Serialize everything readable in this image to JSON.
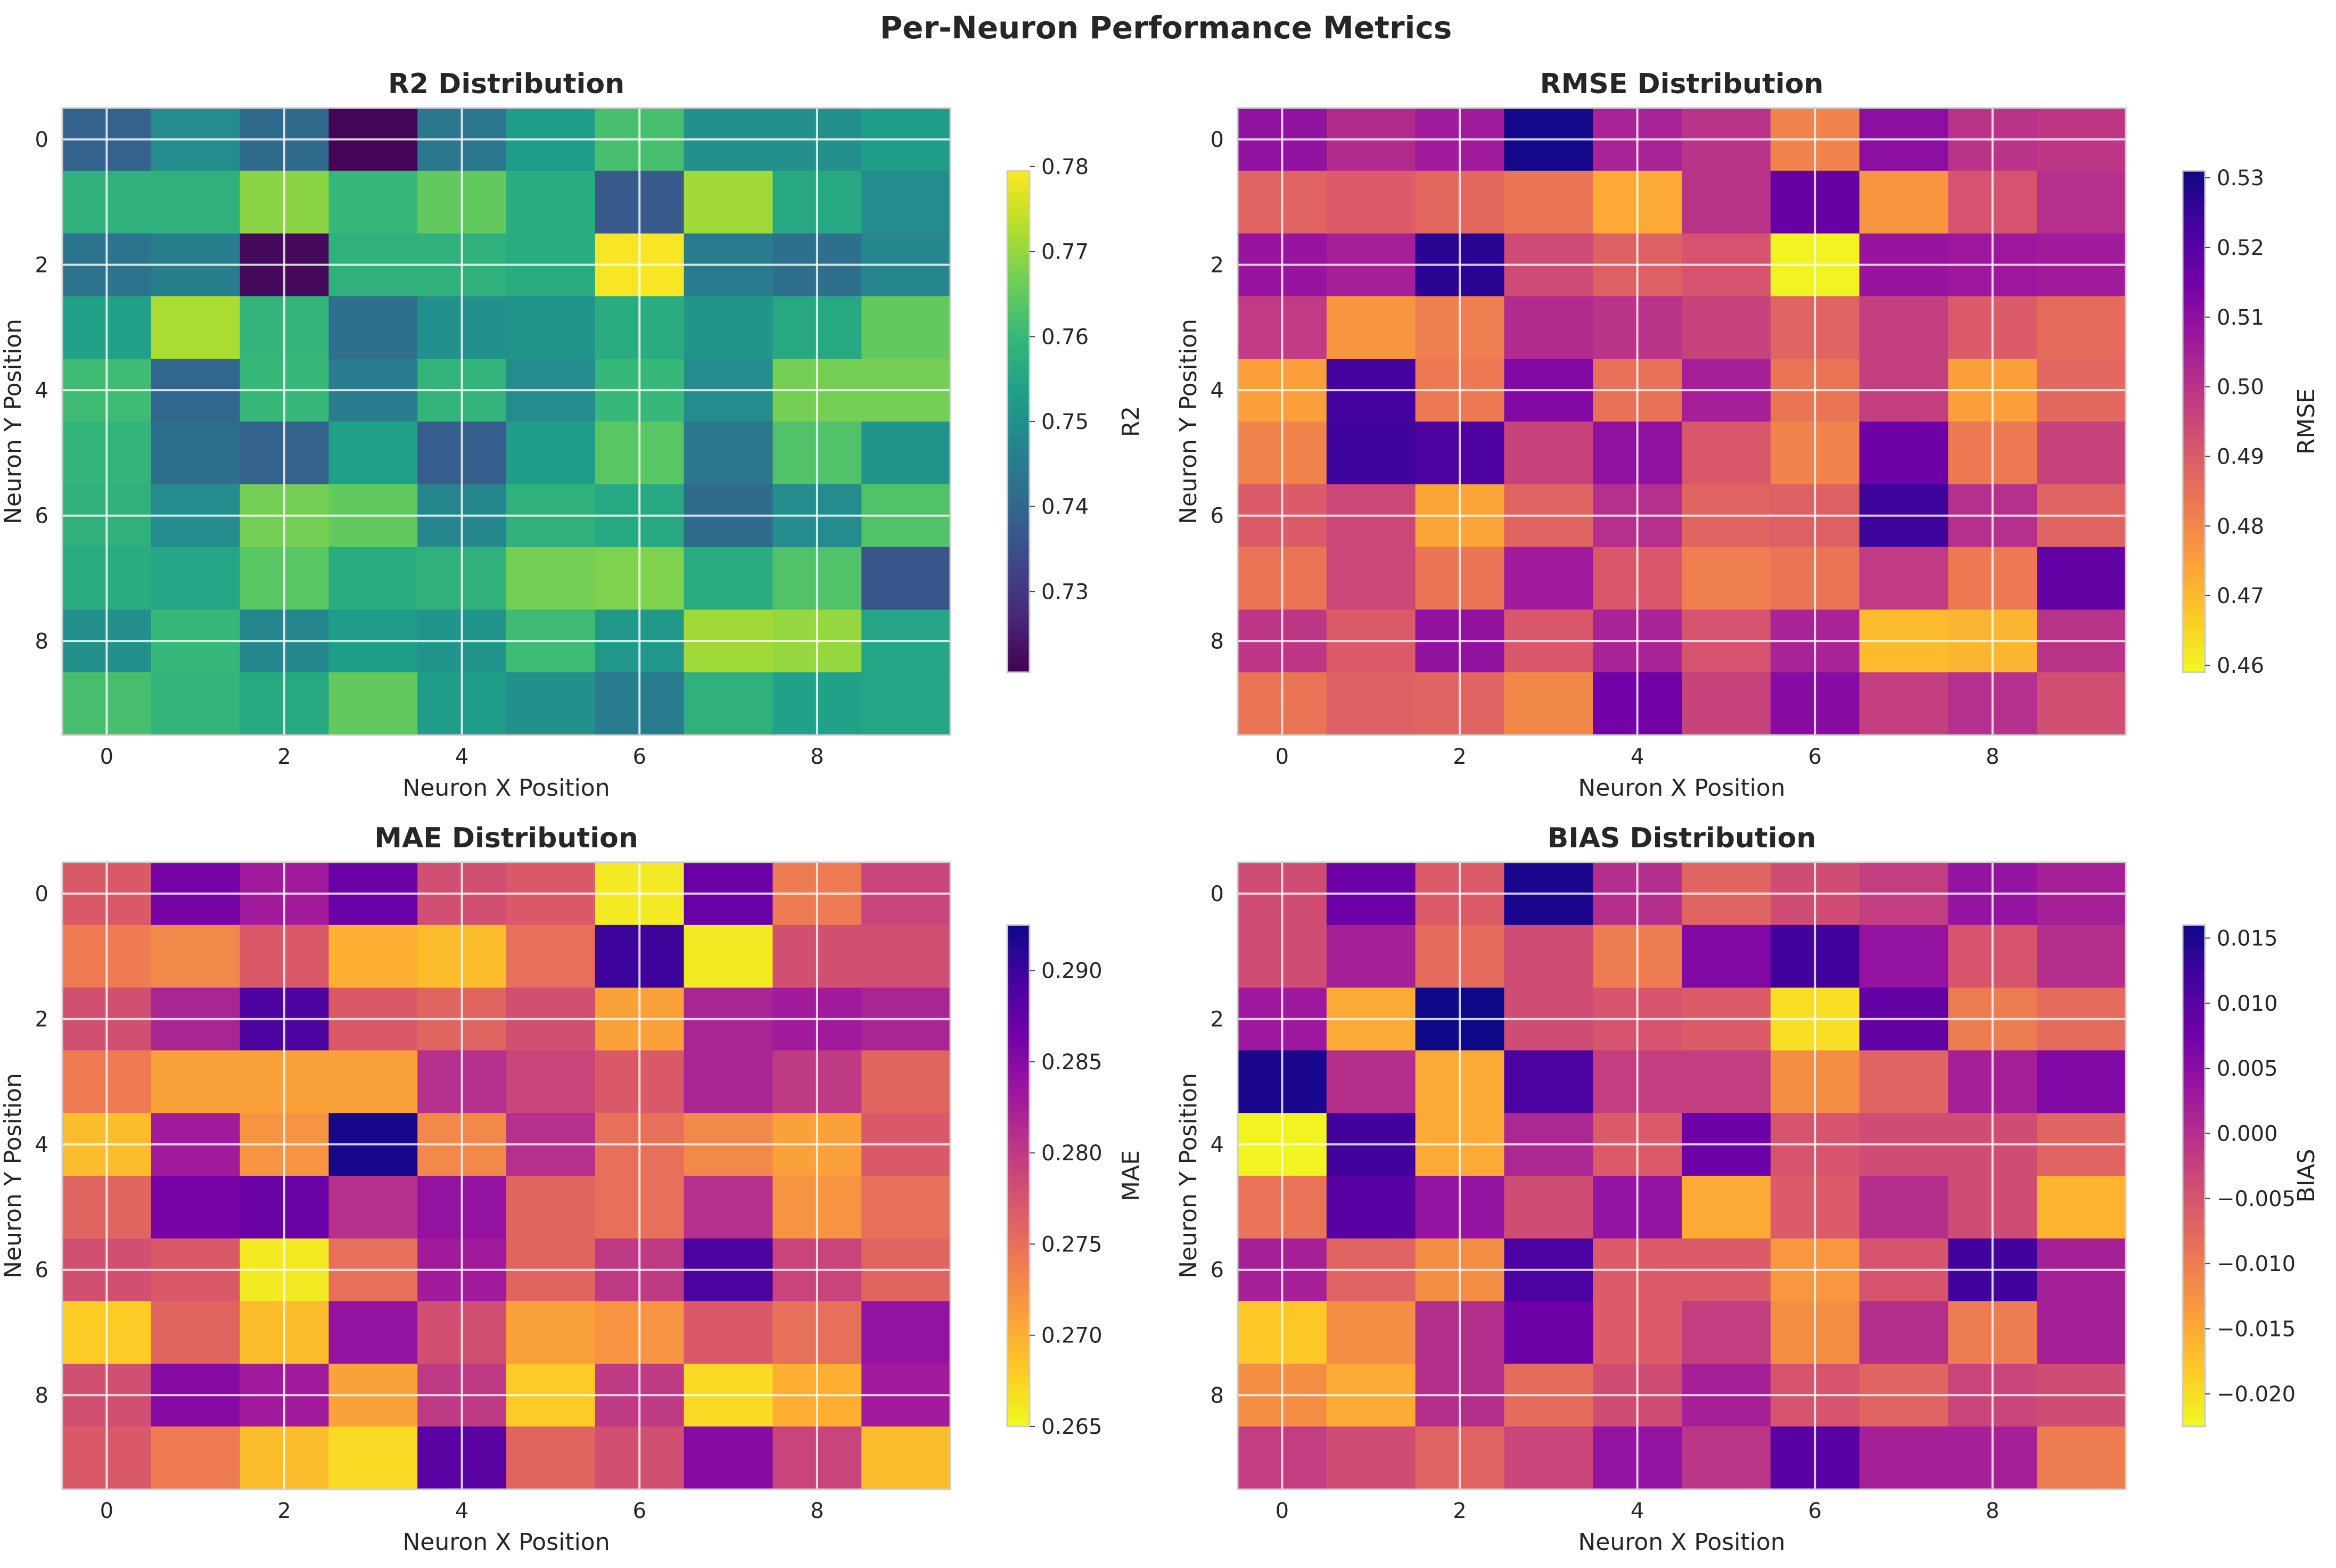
{
  "figure": {
    "title": "Per-Neuron Performance Metrics"
  },
  "chart_data": [
    {
      "type": "heatmap",
      "title": "R2 Distribution",
      "xlabel": "Neuron X Position",
      "ylabel": "Neuron Y Position",
      "colorbar_label": "R2",
      "colormap": "viridis",
      "vmin": 0.7205,
      "vmax": 0.7795,
      "colorbar_ticks": [
        0.73,
        0.74,
        0.75,
        0.76,
        0.77,
        0.78
      ],
      "colorbar_tick_labels": [
        "0.73",
        "0.74",
        "0.75",
        "0.76",
        "0.77",
        "0.78"
      ],
      "xticks": [
        0,
        2,
        4,
        6,
        8
      ],
      "yticks": [
        0,
        2,
        4,
        6,
        8
      ],
      "grid": true,
      "values": [
        [
          0.739,
          0.749,
          0.741,
          0.721,
          0.744,
          0.753,
          0.762,
          0.75,
          0.75,
          0.753
        ],
        [
          0.758,
          0.758,
          0.769,
          0.76,
          0.765,
          0.757,
          0.737,
          0.771,
          0.756,
          0.749
        ],
        [
          0.743,
          0.746,
          0.722,
          0.758,
          0.758,
          0.757,
          0.779,
          0.745,
          0.742,
          0.748
        ],
        [
          0.754,
          0.772,
          0.759,
          0.742,
          0.75,
          0.751,
          0.757,
          0.751,
          0.756,
          0.765
        ],
        [
          0.761,
          0.74,
          0.76,
          0.745,
          0.759,
          0.749,
          0.76,
          0.749,
          0.767,
          0.767
        ],
        [
          0.759,
          0.742,
          0.739,
          0.754,
          0.738,
          0.753,
          0.764,
          0.744,
          0.763,
          0.751
        ],
        [
          0.758,
          0.749,
          0.767,
          0.765,
          0.748,
          0.758,
          0.756,
          0.741,
          0.749,
          0.763
        ],
        [
          0.757,
          0.755,
          0.764,
          0.757,
          0.758,
          0.767,
          0.768,
          0.757,
          0.763,
          0.736
        ],
        [
          0.75,
          0.76,
          0.748,
          0.753,
          0.751,
          0.761,
          0.752,
          0.771,
          0.77,
          0.755
        ],
        [
          0.762,
          0.759,
          0.756,
          0.765,
          0.753,
          0.75,
          0.745,
          0.758,
          0.754,
          0.755
        ]
      ]
    },
    {
      "type": "heatmap",
      "title": "RMSE Distribution",
      "xlabel": "Neuron X Position",
      "ylabel": "Neuron Y Position",
      "colorbar_label": "RMSE",
      "colormap": "plasma_r",
      "vmin": 0.459,
      "vmax": 0.531,
      "colorbar_ticks": [
        0.46,
        0.47,
        0.48,
        0.49,
        0.5,
        0.51,
        0.52,
        0.53
      ],
      "colorbar_tick_labels": [
        "0.46",
        "0.47",
        "0.48",
        "0.49",
        "0.50",
        "0.51",
        "0.52",
        "0.53"
      ],
      "xticks": [
        0,
        2,
        4,
        6,
        8
      ],
      "yticks": [
        0,
        2,
        4,
        6,
        8
      ],
      "grid": true,
      "values": [
        [
          0.509,
          0.502,
          0.506,
          0.53,
          0.504,
          0.5,
          0.481,
          0.51,
          0.5,
          0.499
        ],
        [
          0.488,
          0.49,
          0.487,
          0.484,
          0.473,
          0.5,
          0.517,
          0.477,
          0.492,
          0.501
        ],
        [
          0.508,
          0.505,
          0.527,
          0.494,
          0.489,
          0.492,
          0.46,
          0.508,
          0.507,
          0.506
        ],
        [
          0.498,
          0.477,
          0.482,
          0.502,
          0.5,
          0.496,
          0.488,
          0.497,
          0.49,
          0.486
        ],
        [
          0.475,
          0.523,
          0.483,
          0.512,
          0.485,
          0.505,
          0.484,
          0.497,
          0.475,
          0.487
        ],
        [
          0.481,
          0.524,
          0.522,
          0.496,
          0.509,
          0.491,
          0.481,
          0.516,
          0.483,
          0.496
        ],
        [
          0.49,
          0.495,
          0.474,
          0.488,
          0.501,
          0.488,
          0.489,
          0.524,
          0.501,
          0.488
        ],
        [
          0.484,
          0.495,
          0.484,
          0.506,
          0.491,
          0.482,
          0.484,
          0.498,
          0.483,
          0.518
        ],
        [
          0.499,
          0.49,
          0.509,
          0.491,
          0.504,
          0.492,
          0.504,
          0.47,
          0.471,
          0.5
        ],
        [
          0.484,
          0.489,
          0.488,
          0.48,
          0.515,
          0.496,
          0.511,
          0.497,
          0.501,
          0.493
        ]
      ]
    },
    {
      "type": "heatmap",
      "title": "MAE Distribution",
      "xlabel": "Neuron X Position",
      "ylabel": "Neuron Y Position",
      "colorbar_label": "MAE",
      "colormap": "plasma_r",
      "vmin": 0.265,
      "vmax": 0.2925,
      "colorbar_ticks": [
        0.265,
        0.27,
        0.275,
        0.28,
        0.285,
        0.29
      ],
      "colorbar_tick_labels": [
        "0.265",
        "0.270",
        "0.275",
        "0.280",
        "0.285",
        "0.290"
      ],
      "xticks": [
        0,
        2,
        4,
        6,
        8
      ],
      "yticks": [
        0,
        2,
        4,
        6,
        8
      ],
      "grid": true,
      "values": [
        [
          0.277,
          0.286,
          0.283,
          0.287,
          0.278,
          0.277,
          0.266,
          0.287,
          0.274,
          0.279
        ],
        [
          0.274,
          0.273,
          0.277,
          0.27,
          0.269,
          0.275,
          0.29,
          0.266,
          0.278,
          0.278
        ],
        [
          0.278,
          0.282,
          0.289,
          0.277,
          0.276,
          0.278,
          0.271,
          0.282,
          0.283,
          0.282
        ],
        [
          0.274,
          0.271,
          0.271,
          0.271,
          0.281,
          0.279,
          0.277,
          0.282,
          0.28,
          0.276
        ],
        [
          0.269,
          0.283,
          0.272,
          0.292,
          0.273,
          0.281,
          0.275,
          0.273,
          0.271,
          0.277
        ],
        [
          0.276,
          0.286,
          0.287,
          0.281,
          0.284,
          0.276,
          0.275,
          0.281,
          0.272,
          0.275
        ],
        [
          0.278,
          0.277,
          0.266,
          0.275,
          0.283,
          0.276,
          0.28,
          0.289,
          0.279,
          0.276
        ],
        [
          0.268,
          0.276,
          0.269,
          0.284,
          0.278,
          0.271,
          0.272,
          0.277,
          0.275,
          0.284
        ],
        [
          0.278,
          0.285,
          0.283,
          0.271,
          0.28,
          0.268,
          0.28,
          0.267,
          0.27,
          0.283
        ],
        [
          0.277,
          0.274,
          0.269,
          0.267,
          0.288,
          0.276,
          0.278,
          0.285,
          0.279,
          0.269
        ]
      ]
    },
    {
      "type": "heatmap",
      "title": "BIAS Distribution",
      "xlabel": "Neuron X Position",
      "ylabel": "Neuron Y Position",
      "colorbar_label": "BIAS",
      "colormap": "plasma_r",
      "vmin": -0.0225,
      "vmax": 0.016,
      "colorbar_ticks": [
        -0.02,
        -0.015,
        -0.01,
        -0.005,
        0.0,
        0.005,
        0.01,
        0.015
      ],
      "colorbar_tick_labels": [
        "−0.020",
        "−0.015",
        "−0.010",
        "−0.005",
        "0.000",
        "0.005",
        "0.010",
        "0.015"
      ],
      "xticks": [
        0,
        2,
        4,
        6,
        8
      ],
      "yticks": [
        0,
        2,
        4,
        6,
        8
      ],
      "grid": true,
      "values": [
        [
          -0.004,
          0.008,
          -0.006,
          0.015,
          0.0,
          -0.007,
          -0.004,
          -0.002,
          0.004,
          0.002
        ],
        [
          -0.004,
          0.002,
          -0.008,
          -0.004,
          -0.01,
          0.006,
          0.012,
          0.004,
          -0.005,
          0.0
        ],
        [
          0.003,
          -0.015,
          0.016,
          -0.004,
          -0.005,
          -0.006,
          -0.02,
          0.009,
          -0.01,
          -0.008
        ],
        [
          0.015,
          0.0,
          -0.015,
          0.011,
          -0.002,
          -0.002,
          -0.012,
          -0.007,
          0.002,
          0.006
        ],
        [
          -0.022,
          0.012,
          -0.015,
          0.001,
          -0.006,
          0.008,
          -0.005,
          -0.004,
          -0.004,
          -0.007
        ],
        [
          -0.009,
          0.01,
          0.004,
          -0.004,
          0.004,
          -0.015,
          -0.006,
          0.0,
          -0.004,
          -0.016
        ],
        [
          0.002,
          -0.007,
          -0.012,
          0.011,
          -0.006,
          -0.006,
          -0.013,
          -0.005,
          0.012,
          0.002
        ],
        [
          -0.018,
          -0.012,
          0.0,
          0.008,
          -0.006,
          -0.002,
          -0.012,
          0.0,
          -0.01,
          0.002
        ],
        [
          -0.012,
          -0.015,
          0.0,
          -0.008,
          -0.004,
          0.002,
          -0.005,
          -0.007,
          -0.003,
          -0.004
        ],
        [
          -0.002,
          -0.004,
          -0.007,
          -0.003,
          0.004,
          -0.001,
          0.01,
          0.002,
          0.002,
          -0.01
        ]
      ]
    }
  ]
}
